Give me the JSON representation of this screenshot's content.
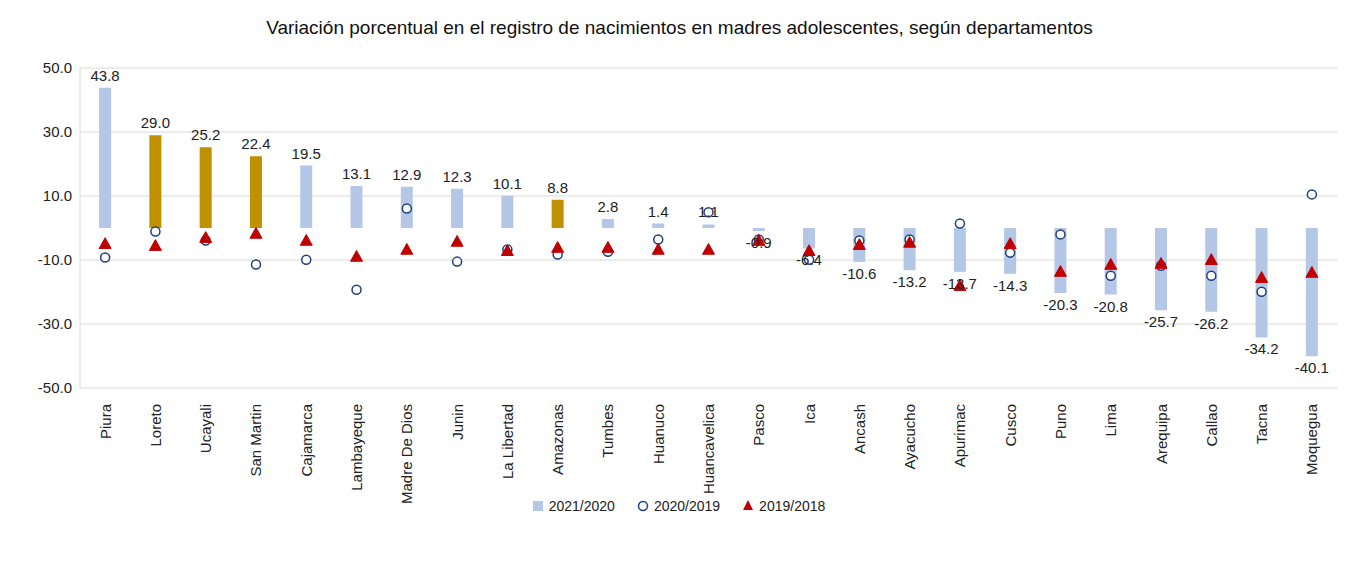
{
  "chart_data": {
    "type": "bar",
    "title": "Variación porcentual en el registro de nacimientos en madres adolescentes, según departamentos",
    "categories": [
      "Piura",
      "Loreto",
      "Ucayali",
      "San Martin",
      "Cajamarca",
      "Lambayeque",
      "Madre De Dios",
      "Junin",
      "La Libertad",
      "Amazonas",
      "Tumbes",
      "Huanuco",
      "Huancavelica",
      "Pasco",
      "Ica",
      "Ancash",
      "Ayacucho",
      "Apurimac",
      "Cusco",
      "Puno",
      "Lima",
      "Arequipa",
      "Callao",
      "Tacna",
      "Moquegua"
    ],
    "series": [
      {
        "name": "2021/2020",
        "type": "bar",
        "color": "#b4c7e7",
        "colors": [
          "#b4c7e7",
          "#bf9000",
          "#bf9000",
          "#bf9000",
          "#b4c7e7",
          "#b4c7e7",
          "#b4c7e7",
          "#b4c7e7",
          "#b4c7e7",
          "#bf9000",
          "#b4c7e7",
          "#b4c7e7",
          "#b4c7e7",
          "#b4c7e7",
          "#b4c7e7",
          "#b4c7e7",
          "#b4c7e7",
          "#b4c7e7",
          "#b4c7e7",
          "#b4c7e7",
          "#b4c7e7",
          "#b4c7e7",
          "#b4c7e7",
          "#b4c7e7",
          "#b4c7e7"
        ],
        "values": [
          43.8,
          29.0,
          25.2,
          22.4,
          19.5,
          13.1,
          12.9,
          12.3,
          10.1,
          8.8,
          2.8,
          1.4,
          1.1,
          -0.9,
          -6.4,
          -10.6,
          -13.2,
          -13.7,
          -14.3,
          -20.3,
          -20.8,
          -25.7,
          -26.2,
          -34.2,
          -40.1
        ],
        "value_labels": [
          "43.8",
          "29.0",
          "25.2",
          "22.4",
          "19.5",
          "13.1",
          "12.9",
          "12.3",
          "10.1",
          "8.8",
          "2.8",
          "1.4",
          "1.1",
          "-0.9",
          "-6.4",
          "-10.6",
          "-13.2",
          "-13.7",
          "-14.3",
          "-20.3",
          "-20.8",
          "-25.7",
          "-26.2",
          "-34.2",
          "-40.1"
        ]
      },
      {
        "name": "2020/2019",
        "type": "scatter",
        "marker": "open_circle",
        "color": "#1f3f7f",
        "values": [
          -9.2,
          -1.1,
          -3.9,
          -11.4,
          -9.9,
          -19.3,
          6.1,
          -10.5,
          -6.7,
          -8.3,
          -7.4,
          -3.6,
          4.9,
          -3.6,
          -9.9,
          -3.9,
          -3.6,
          1.4,
          -7.7,
          -2.0,
          -14.9,
          -11.8,
          -14.9,
          -19.9,
          10.5
        ]
      },
      {
        "name": "2019/2018",
        "type": "scatter",
        "marker": "triangle",
        "color": "#c00000",
        "values": [
          -4.9,
          -5.5,
          -3.0,
          -1.7,
          -3.9,
          -8.9,
          -6.7,
          -4.2,
          -7.1,
          -6.1,
          -6.1,
          -6.7,
          -6.7,
          -3.9,
          -7.1,
          -5.2,
          -4.5,
          -18.0,
          -4.9,
          -13.6,
          -11.4,
          -11.1,
          -9.9,
          -15.5,
          -13.9
        ]
      }
    ],
    "ylim": [
      -50,
      50
    ],
    "yticks": [
      {
        "value": -50,
        "label": "-50.0"
      },
      {
        "value": -30,
        "label": "-30.0"
      },
      {
        "value": -10,
        "label": "-10.0"
      },
      {
        "value": 10,
        "label": "10.0"
      },
      {
        "value": 30,
        "label": "30.0"
      },
      {
        "value": 50,
        "label": "50.0"
      }
    ],
    "grid": true,
    "legend": "bottom",
    "data_labels": true
  }
}
